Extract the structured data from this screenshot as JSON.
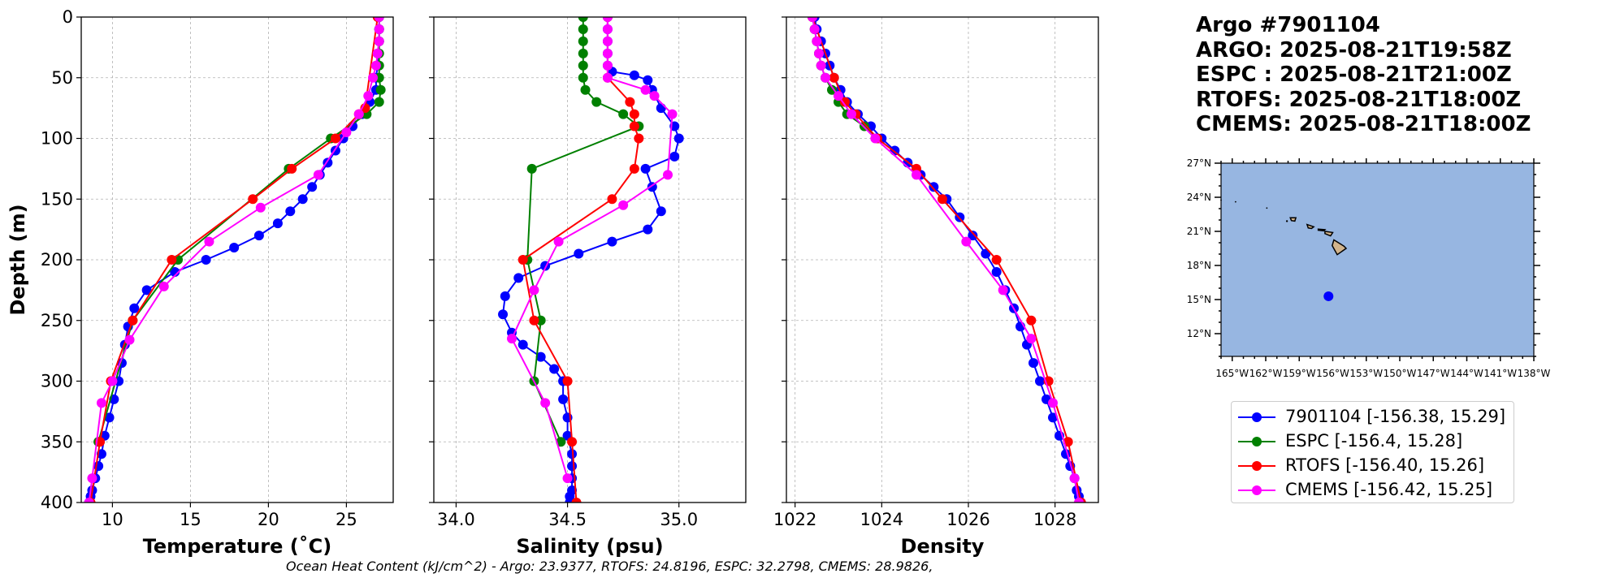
{
  "chart_data": [
    {
      "type": "line",
      "xlabel": "Temperature (˚C)",
      "ylabel": "Depth (m)",
      "xlim": [
        8,
        28
      ],
      "ylim": [
        400,
        0
      ],
      "xticks": [
        "10",
        "15",
        "20",
        "25"
      ],
      "xtick_values": [
        10,
        15,
        20,
        25
      ],
      "yticks": [
        "0",
        "50",
        "100",
        "150",
        "200",
        "250",
        "300",
        "350",
        "400"
      ],
      "ytick_values": [
        0,
        50,
        100,
        150,
        200,
        250,
        300,
        350,
        400
      ],
      "grid": true,
      "series": [
        {
          "name": "7901104",
          "color": "#0000ff",
          "x": [
            27.1,
            27.1,
            27.1,
            27.0,
            27.0,
            26.9,
            26.9,
            26.5,
            26.0,
            25.4,
            24.8,
            24.3,
            23.8,
            23.3,
            22.8,
            22.2,
            21.4,
            20.6,
            19.4,
            17.8,
            16.0,
            14.0,
            12.2,
            11.4,
            11.0,
            10.8,
            10.6,
            10.4,
            10.1,
            9.8,
            9.5,
            9.3,
            9.1,
            8.9,
            8.7,
            8.6,
            8.5
          ],
          "y": [
            0,
            10,
            20,
            30,
            40,
            50,
            60,
            70,
            80,
            90,
            100,
            110,
            120,
            130,
            140,
            150,
            160,
            170,
            180,
            190,
            200,
            210,
            225,
            240,
            255,
            270,
            285,
            300,
            315,
            330,
            345,
            360,
            370,
            380,
            390,
            395,
            400
          ]
        },
        {
          "name": "ESPC",
          "color": "#008000",
          "x": [
            27.1,
            27.1,
            27.1,
            27.1,
            27.1,
            27.1,
            27.2,
            27.1,
            26.3,
            24.0,
            21.3,
            14.2,
            11.3,
            9.1
          ],
          "y": [
            0,
            10,
            20,
            30,
            40,
            50,
            60,
            70,
            80,
            100,
            125,
            200,
            250,
            350
          ]
        },
        {
          "name": "RTOFS",
          "color": "#ff0000",
          "x": [
            27.0,
            26.2,
            25.8,
            24.3,
            21.5,
            19.0,
            13.8,
            11.3,
            9.9,
            9.2,
            8.6
          ],
          "y": [
            0,
            75,
            80,
            100,
            125,
            150,
            200,
            250,
            300,
            350,
            400
          ]
        },
        {
          "name": "CMEMS",
          "color": "#ff00ff",
          "x": [
            27.1,
            27.1,
            27.1,
            27.0,
            26.9,
            26.7,
            26.4,
            25.8,
            25.0,
            23.2,
            19.5,
            16.2,
            13.3,
            11.1,
            10.0,
            9.3,
            8.7,
            8.5
          ],
          "y": [
            0,
            10,
            20,
            30,
            40,
            50,
            65,
            80,
            95,
            130,
            157,
            185,
            222,
            266,
            300,
            318,
            380,
            400
          ]
        }
      ]
    },
    {
      "type": "line",
      "xlabel": "Salinity (psu)",
      "ylabel": "",
      "xlim": [
        33.9,
        35.3
      ],
      "ylim": [
        400,
        0
      ],
      "xticks": [
        "34.0",
        "34.5",
        "35.0"
      ],
      "xtick_values": [
        34.0,
        34.5,
        35.0
      ],
      "grid": true,
      "series": [
        {
          "name": "7901104",
          "color": "#0000ff",
          "x": [
            34.68,
            34.68,
            34.68,
            34.68,
            34.68,
            34.7,
            34.8,
            34.86,
            34.88,
            34.92,
            34.98,
            35.0,
            34.98,
            34.85,
            34.88,
            34.92,
            34.86,
            34.7,
            34.55,
            34.4,
            34.28,
            34.22,
            34.21,
            34.25,
            34.3,
            34.38,
            34.44,
            34.48,
            34.48,
            34.5,
            34.5,
            34.52,
            34.52,
            34.52,
            34.52,
            34.51,
            34.51
          ],
          "y": [
            0,
            10,
            20,
            30,
            40,
            45,
            48,
            52,
            60,
            75,
            90,
            100,
            115,
            125,
            140,
            160,
            175,
            185,
            195,
            205,
            215,
            230,
            245,
            260,
            270,
            280,
            290,
            300,
            315,
            330,
            345,
            360,
            370,
            380,
            390,
            395,
            400
          ]
        },
        {
          "name": "ESPC",
          "color": "#008000",
          "x": [
            34.57,
            34.57,
            34.57,
            34.57,
            34.57,
            34.57,
            34.58,
            34.63,
            34.75,
            34.82,
            34.34,
            34.32,
            34.38,
            34.35,
            34.47
          ],
          "y": [
            0,
            10,
            20,
            30,
            40,
            50,
            60,
            70,
            80,
            90,
            125,
            200,
            250,
            300,
            350
          ]
        },
        {
          "name": "RTOFS",
          "color": "#ff0000",
          "x": [
            34.68,
            34.68,
            34.78,
            34.8,
            34.8,
            34.82,
            34.8,
            34.7,
            34.3,
            34.35,
            34.5,
            34.52,
            34.54
          ],
          "y": [
            0,
            50,
            70,
            80,
            90,
            100,
            125,
            150,
            200,
            250,
            300,
            350,
            400
          ]
        },
        {
          "name": "CMEMS",
          "color": "#ff00ff",
          "x": [
            34.68,
            34.68,
            34.68,
            34.68,
            34.68,
            34.68,
            34.85,
            34.89,
            34.97,
            34.95,
            34.75,
            34.46,
            34.35,
            34.25,
            34.4,
            34.5
          ],
          "y": [
            0,
            10,
            20,
            30,
            40,
            50,
            60,
            65,
            80,
            130,
            155,
            185,
            225,
            265,
            318,
            380
          ]
        }
      ]
    },
    {
      "type": "line",
      "xlabel": "Density",
      "ylabel": "",
      "xlim": [
        1021.8,
        1029.0
      ],
      "ylim": [
        400,
        0
      ],
      "xticks": [
        "1022",
        "1024",
        "1026",
        "1028"
      ],
      "xtick_values": [
        1022,
        1024,
        1026,
        1028
      ],
      "grid": true,
      "series": [
        {
          "name": "7901104",
          "color": "#0000ff",
          "x": [
            1022.45,
            1022.5,
            1022.6,
            1022.7,
            1022.8,
            1022.9,
            1023.05,
            1023.2,
            1023.45,
            1023.75,
            1024.0,
            1024.3,
            1024.6,
            1024.9,
            1025.2,
            1025.5,
            1025.8,
            1026.1,
            1026.4,
            1026.65,
            1026.85,
            1027.05,
            1027.2,
            1027.35,
            1027.5,
            1027.65,
            1027.8,
            1027.95,
            1028.1,
            1028.25,
            1028.35,
            1028.45,
            1028.5,
            1028.55,
            1028.6
          ],
          "y": [
            0,
            10,
            20,
            30,
            40,
            50,
            60,
            70,
            80,
            90,
            100,
            110,
            120,
            130,
            140,
            150,
            165,
            180,
            195,
            210,
            225,
            240,
            255,
            270,
            285,
            300,
            315,
            330,
            345,
            360,
            370,
            380,
            390,
            395,
            400
          ]
        },
        {
          "name": "ESPC",
          "color": "#008000",
          "x": [
            1022.4,
            1022.45,
            1022.5,
            1022.55,
            1022.6,
            1022.7,
            1022.85,
            1023.0,
            1023.2,
            1023.6,
            1023.9
          ],
          "y": [
            0,
            10,
            20,
            30,
            40,
            50,
            60,
            70,
            80,
            90,
            100
          ]
        },
        {
          "name": "RTOFS",
          "color": "#ff0000",
          "x": [
            1022.4,
            1022.9,
            1023.15,
            1023.4,
            1023.9,
            1024.8,
            1025.4,
            1026.65,
            1027.45,
            1027.85,
            1028.3,
            1028.6
          ],
          "y": [
            0,
            50,
            70,
            80,
            100,
            125,
            150,
            200,
            250,
            300,
            350,
            400
          ]
        },
        {
          "name": "CMEMS",
          "color": "#ff00ff",
          "x": [
            1022.4,
            1022.45,
            1022.5,
            1022.55,
            1022.6,
            1022.7,
            1023.0,
            1023.3,
            1023.85,
            1024.8,
            1025.95,
            1026.8,
            1027.45,
            1027.95,
            1028.45,
            1028.55
          ],
          "y": [
            0,
            10,
            20,
            30,
            40,
            50,
            65,
            80,
            100,
            130,
            185,
            225,
            265,
            318,
            380,
            400
          ]
        }
      ]
    },
    {
      "type": "map",
      "lat_range": [
        10,
        27
      ],
      "lon_range": [
        -166,
        -138
      ],
      "lat_ticks": [
        "27°N",
        "24°N",
        "21°N",
        "18°N",
        "15°N",
        "12°N"
      ],
      "lat_tick_values": [
        27,
        24,
        21,
        18,
        15,
        12
      ],
      "lon_ticks": [
        "165°W",
        "162°W",
        "159°W",
        "156°W",
        "153°W",
        "150°W",
        "147°W",
        "144°W",
        "141°W",
        "138°W"
      ],
      "lon_tick_values": [
        -165,
        -162,
        -159,
        -156,
        -153,
        -150,
        -147,
        -144,
        -141,
        -138
      ],
      "ocean_color": "#97b6e1",
      "land_color": "#d2b48c",
      "float_position": {
        "lon": -156.38,
        "lat": 15.29,
        "color": "#0000ff"
      }
    }
  ],
  "title_lines": [
    "Argo #7901104",
    "ARGO: 2025-08-21T19:58Z",
    "ESPC : 2025-08-21T21:00Z",
    "RTOFS: 2025-08-21T18:00Z",
    "CMEMS: 2025-08-21T18:00Z"
  ],
  "legend": [
    {
      "label": "7901104 [-156.38, 15.29]",
      "color": "#0000ff"
    },
    {
      "label": "ESPC [-156.4, 15.28]",
      "color": "#008000"
    },
    {
      "label": "RTOFS [-156.40, 15.26]",
      "color": "#ff0000"
    },
    {
      "label": "CMEMS [-156.42, 15.25]",
      "color": "#ff00ff"
    }
  ],
  "footer": "Ocean Heat Content (kJ/cm^2) - Argo: 23.9377,  RTOFS: 24.8196,  ESPC: 32.2798,  CMEMS: 28.9826,"
}
